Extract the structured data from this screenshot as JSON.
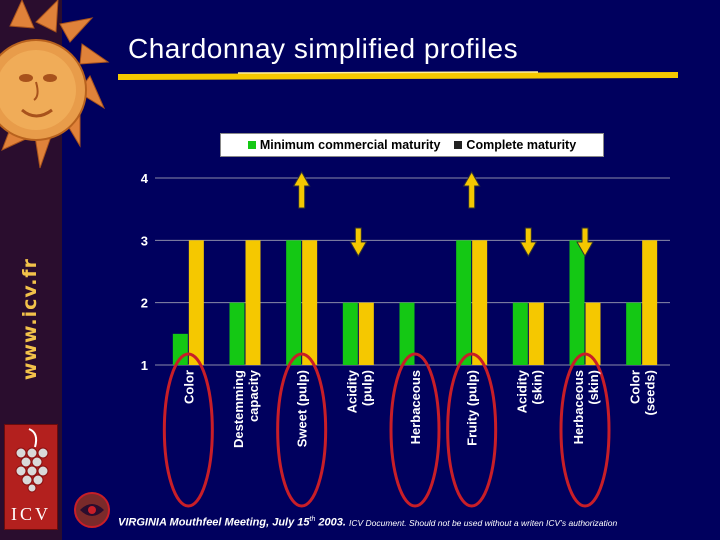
{
  "site_url": "www.icv.fr",
  "logo_text": "ICV",
  "title": "Chardonnay simplified profiles",
  "footer": {
    "event": "VIRGINIA Mouthfeel Meeting, July 15",
    "event_sup": "th",
    "year": " 2003.",
    "note": "ICV Document. Should not be used without a writen ICV’s authorization"
  },
  "colors": {
    "background": "#00005e",
    "series_min": "#14c814",
    "series_complete": "#f5c800",
    "arrow": "#f5c800",
    "circle": "#c81e28"
  },
  "chart_data": {
    "type": "bar",
    "categories": [
      "Color",
      "Destemming capacity",
      "Sweet (pulp)",
      "Acidity (pulp)",
      "Herbaceous",
      "Fruity (pulp)",
      "Acidity (skin)",
      "Herbaceous (skin)",
      "Color (seeds)"
    ],
    "category_lines": [
      [
        "Color"
      ],
      [
        "Destemming",
        "capacity"
      ],
      [
        "Sweet (pulp)"
      ],
      [
        "Acidity",
        "(pulp)"
      ],
      [
        "Herbaceous"
      ],
      [
        "Fruity (pulp)"
      ],
      [
        "Acidity",
        "(skin)"
      ],
      [
        "Herbaceous",
        "(skin)"
      ],
      [
        "Color",
        "(seeds)"
      ]
    ],
    "series": [
      {
        "name": "Minimum commercial maturity",
        "values": [
          1.5,
          2,
          3,
          2,
          2,
          3,
          2,
          3,
          2
        ]
      },
      {
        "name": "Complete maturity",
        "values": [
          3,
          3,
          3,
          2,
          1,
          3,
          2,
          2,
          3
        ]
      }
    ],
    "ylim": [
      1,
      4
    ],
    "yticks": [
      "1",
      "2",
      "3",
      "4"
    ],
    "legend": "top",
    "arrows": [
      {
        "category": "Sweet (pulp)",
        "direction": "up"
      },
      {
        "category": "Acidity (pulp)",
        "direction": "down"
      },
      {
        "category": "Fruity (pulp)",
        "direction": "up"
      },
      {
        "category": "Acidity (skin)",
        "direction": "down"
      },
      {
        "category": "Herbaceous (skin)",
        "direction": "down"
      }
    ],
    "circled": [
      "Color",
      "Sweet (pulp)",
      "Herbaceous",
      "Fruity (pulp)",
      "Herbaceous (skin)"
    ]
  }
}
